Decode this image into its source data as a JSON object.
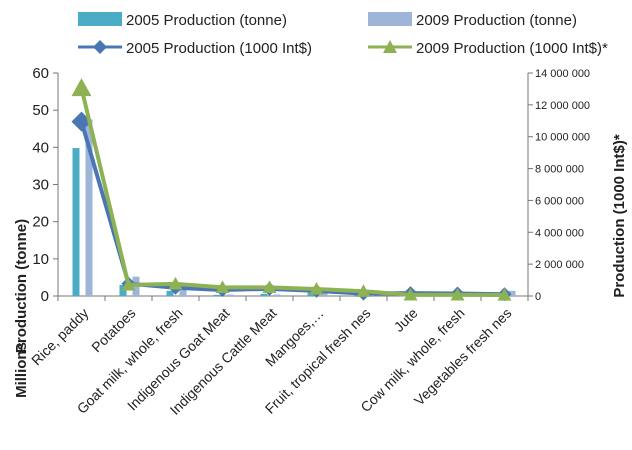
{
  "chart_data": {
    "type": "bar",
    "categories": [
      "Rice, paddy",
      "Potatoes",
      "Goat milk, whole, fresh",
      "Indigenous Goat Meat",
      "Indigenous Cattle Meat",
      "Mangoes,…",
      "Fruit, tropical fresh nes",
      "Jute",
      "Cow milk, whole, fresh",
      "Vegetables fresh nes"
    ],
    "series": [
      {
        "name": "2005 Production (tonne)",
        "kind": "bar",
        "axis": "left",
        "color": "#4bacc6",
        "values": [
          39.8,
          3.0,
          1.4,
          0.3,
          0.6,
          0.9,
          0.5,
          0.8,
          0.6,
          0.3
        ]
      },
      {
        "name": "2009 Production (tonne)",
        "kind": "bar",
        "axis": "left",
        "color": "#9eb4d8",
        "values": [
          47.5,
          5.2,
          2.3,
          0.4,
          0.4,
          1.0,
          0.7,
          0.5,
          0.8,
          1.4
        ]
      },
      {
        "name": "2005 Production (1000 Int$)",
        "kind": "line",
        "axis": "right",
        "color": "#4a77b4",
        "marker": "diamond",
        "values": [
          10950000,
          780000,
          520000,
          380000,
          450000,
          320000,
          150000,
          180000,
          160000,
          110000
        ]
      },
      {
        "name": "2009 Production (1000 Int$)*",
        "kind": "line",
        "axis": "right",
        "color": "#8db254",
        "marker": "triangle",
        "values": [
          13050000,
          700000,
          760000,
          540000,
          540000,
          440000,
          300000,
          70000,
          70000,
          60000
        ]
      }
    ],
    "ylabel_left": "Production (tonne)",
    "ylabel_left_unit": "Millions",
    "ylabel_right": "Production (1000 Int$)*",
    "ylim_left": [
      0,
      60
    ],
    "ylim_right": [
      0,
      14000000
    ],
    "yticks_left": [
      "0",
      "10",
      "20",
      "30",
      "40",
      "50",
      "60"
    ],
    "yticks_right": [
      "0",
      "2 000 000",
      "4 000 000",
      "6 000 000",
      "8 000 000",
      "10 000 000",
      "12 000 000",
      "14 000 000"
    ],
    "legend_position": "top",
    "grid": false
  }
}
